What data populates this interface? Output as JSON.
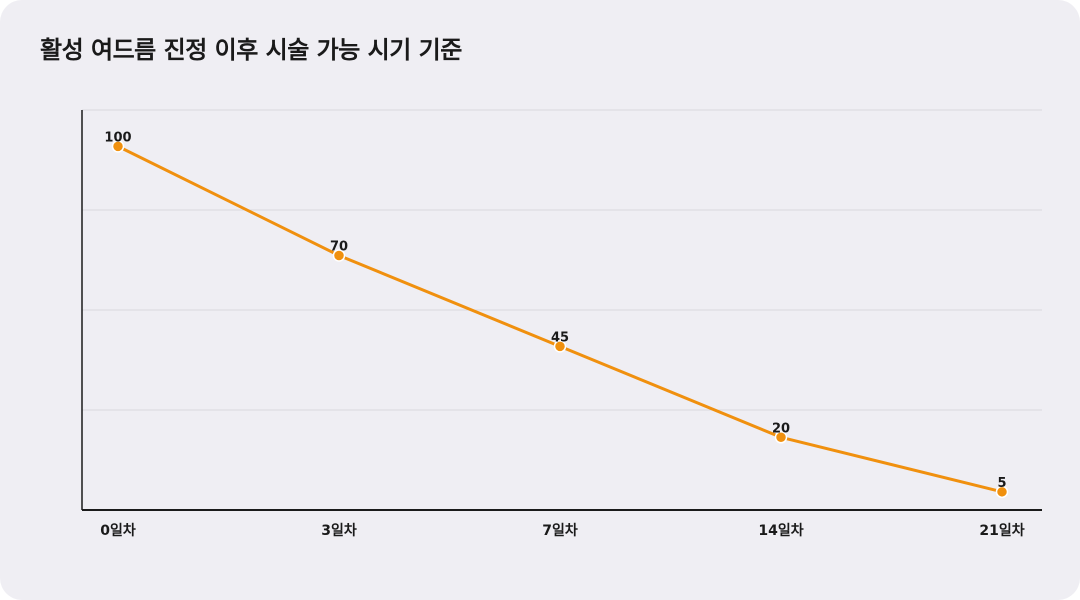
{
  "chart_data": {
    "type": "line",
    "title": "활성 여드름 진정 이후 시술 가능 시기 기준",
    "xlabel": "",
    "ylabel": "",
    "categories": [
      "0일차",
      "3일차",
      "7일차",
      "14일차",
      "21일차"
    ],
    "series": [
      {
        "values": [
          100,
          70,
          45,
          20,
          5
        ]
      }
    ],
    "ylim": [
      0,
      110
    ],
    "y_gridlines": [
      27.5,
      55,
      82.5,
      110
    ],
    "grid": true,
    "legend": "none",
    "colors": {
      "line": "#f0900e",
      "marker_fill": "#f0900e",
      "marker_stroke": "#ffffff",
      "grid": "#d9d8de",
      "axis": "#1a1a1a",
      "background": "#efeef3"
    }
  }
}
